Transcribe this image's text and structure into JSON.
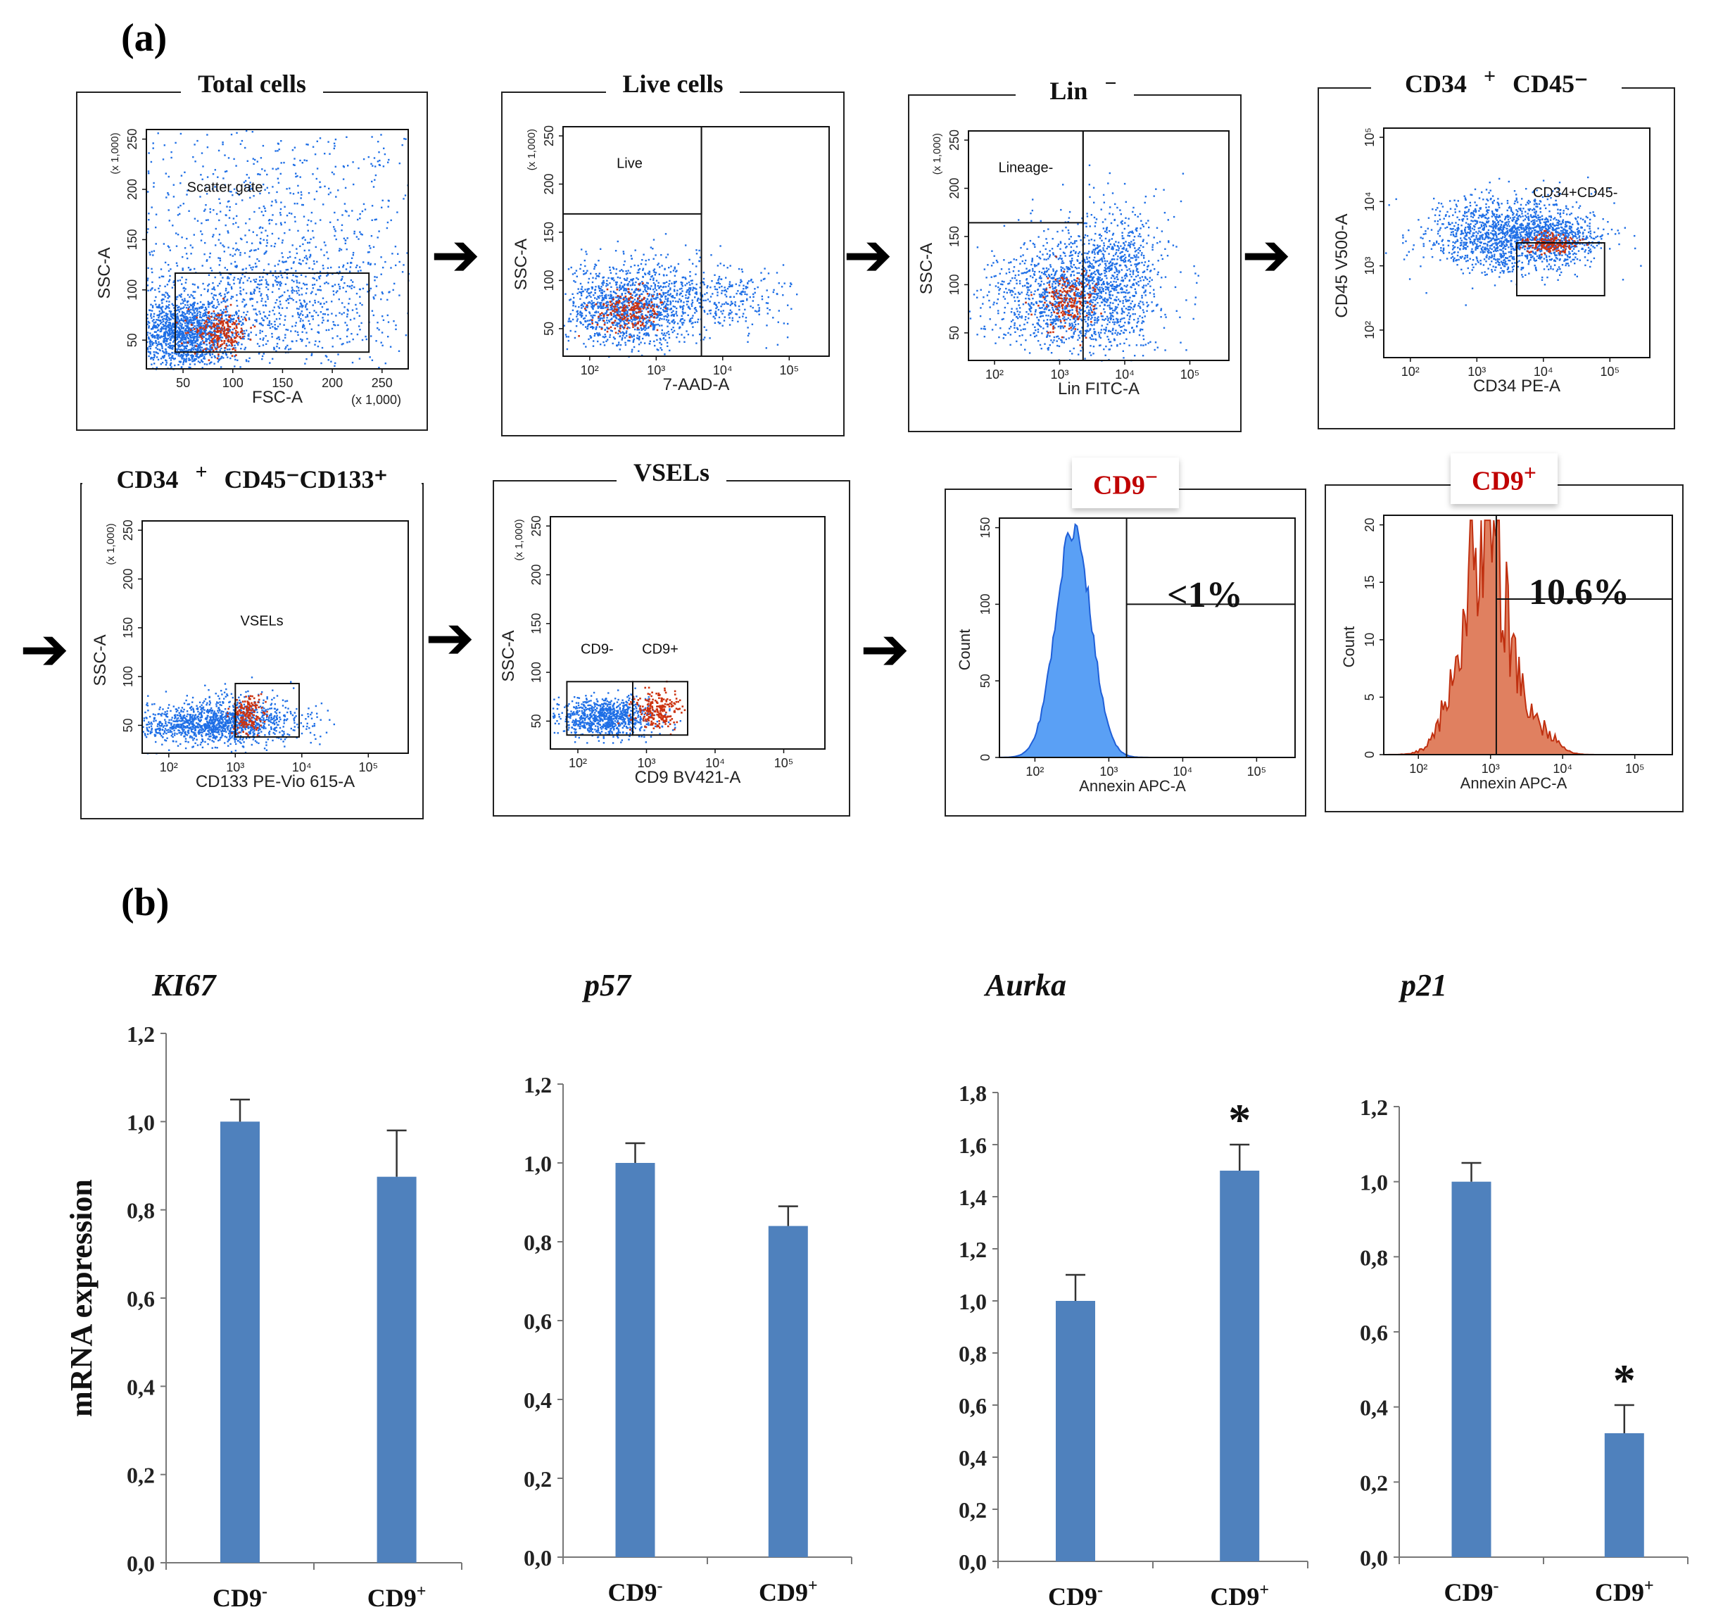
{
  "panels": {
    "a": "(a)",
    "b": "(b)"
  },
  "colors": {
    "blue": "#1f6fe6",
    "red": "#cc3310",
    "bar": "#4f81bd",
    "cd_red": "#c00000",
    "hist_blue": "#5aa0f5",
    "hist_red": "#e08060"
  },
  "flow": [
    {
      "id": "total",
      "title": "Total cells",
      "title_sup": "",
      "title_after": "",
      "xlabel": "FSC-A",
      "ylabel": "SSC-A",
      "ymult": "(x 1,000)",
      "xmult": "(x 1,000)",
      "scale": "linear",
      "xticks": [
        "50",
        "100",
        "150",
        "200",
        "250"
      ],
      "yticks": [
        "50",
        "100",
        "150",
        "200",
        "250"
      ],
      "gates": [
        {
          "label": "Scatter gate"
        }
      ]
    },
    {
      "id": "live",
      "title": "Live cells",
      "title_sup": "",
      "title_after": "",
      "xlabel": "7-AAD-A",
      "ylabel": "SSC-A",
      "ymult": "(x 1,000)",
      "scale": "log",
      "xticks": [
        "10²",
        "10³",
        "10⁴",
        "10⁵"
      ],
      "yticks": [
        "50",
        "100",
        "150",
        "200",
        "250"
      ],
      "gates": [
        {
          "label": "Live"
        }
      ]
    },
    {
      "id": "lin",
      "title": "Lin",
      "title_sup": "−",
      "title_after": "",
      "xlabel": "Lin FITC-A",
      "ylabel": "SSC-A",
      "ymult": "(x 1,000)",
      "scale": "log",
      "xticks": [
        "10²",
        "10³",
        "10⁴",
        "10⁵"
      ],
      "yticks": [
        "50",
        "100",
        "150",
        "200",
        "250"
      ],
      "gates": [
        {
          "label": "Lineage-"
        }
      ]
    },
    {
      "id": "cd34",
      "title": "CD34",
      "title_sup": "+",
      "title_after": "CD45⁻",
      "xlabel": "CD34 PE-A",
      "ylabel": "CD45 V500-A",
      "ymult": "",
      "scale": "log",
      "xticks": [
        "10²",
        "10³",
        "10⁴",
        "10⁵"
      ],
      "yticks": [
        "10²",
        "10³",
        "10⁴",
        "10⁵"
      ],
      "gates": [
        {
          "label": "CD34+CD45-"
        }
      ]
    },
    {
      "id": "cd133",
      "title": "CD34",
      "title_sup": "+",
      "title_after": "CD45⁻CD133⁺",
      "xlabel": "CD133 PE-Vio 615-A",
      "ylabel": "SSC-A",
      "ymult": "(x 1,000)",
      "scale": "log",
      "xticks": [
        "10²",
        "10³",
        "10⁴",
        "10⁵"
      ],
      "yticks": [
        "50",
        "100",
        "150",
        "200",
        "250"
      ],
      "gates": [
        {
          "label": "VSELs"
        }
      ]
    },
    {
      "id": "vsel",
      "title": "VSELs",
      "title_sup": "",
      "title_after": "",
      "xlabel": "CD9 BV421-A",
      "ylabel": "SSC-A",
      "ymult": "(x 1,000)",
      "scale": "log",
      "xticks": [
        "10²",
        "10³",
        "10⁴",
        "10⁵"
      ],
      "yticks": [
        "50",
        "100",
        "150",
        "200",
        "250"
      ],
      "gates": [
        {
          "label": "CD9-"
        },
        {
          "label": "CD9+"
        }
      ]
    }
  ],
  "histograms": [
    {
      "id": "cd9neg",
      "tag": "CD9",
      "tag_sup": "−",
      "xlabel": "Annexin APC-A",
      "ylabel": "Count",
      "yticks": [
        "0",
        "50",
        "100",
        "150"
      ],
      "xticks": [
        "10²",
        "10³",
        "10⁴",
        "10⁵"
      ],
      "percent": "<1%"
    },
    {
      "id": "cd9pos",
      "tag": "CD9",
      "tag_sup": "+",
      "xlabel": "Annexin APC-A",
      "ylabel": "Count",
      "yticks": [
        "0",
        "5",
        "10",
        "15",
        "20"
      ],
      "xticks": [
        "10²",
        "10³",
        "10⁴",
        "10⁵"
      ],
      "percent": "10.6%"
    }
  ],
  "chart_data": [
    {
      "type": "bar",
      "title": "KI67",
      "categories": [
        "CD9-",
        "CD9+"
      ],
      "values": [
        1.0,
        0.875
      ],
      "errors": [
        0.05,
        0.105
      ],
      "significant": [
        false,
        false
      ],
      "ylim": [
        0,
        1.2
      ],
      "yticks": [
        "0,0",
        "0,2",
        "0,4",
        "0,6",
        "0,8",
        "1,0",
        "1,2"
      ],
      "ylabel": "mRNA expression"
    },
    {
      "type": "bar",
      "title": "p57",
      "categories": [
        "CD9-",
        "CD9+"
      ],
      "values": [
        1.0,
        0.84
      ],
      "errors": [
        0.05,
        0.05
      ],
      "significant": [
        false,
        false
      ],
      "ylim": [
        0,
        1.2
      ],
      "yticks": [
        "0,0",
        "0,2",
        "0,4",
        "0,6",
        "0,8",
        "1,0",
        "1,2"
      ],
      "ylabel": ""
    },
    {
      "type": "bar",
      "title": "Aurka",
      "categories": [
        "CD9-",
        "CD9+"
      ],
      "values": [
        1.0,
        1.5
      ],
      "errors": [
        0.1,
        0.1
      ],
      "significant": [
        false,
        true
      ],
      "ylim": [
        0,
        1.8
      ],
      "yticks": [
        "0,0",
        "0,2",
        "0,4",
        "0,6",
        "0,8",
        "1,0",
        "1,2",
        "1,4",
        "1,6",
        "1,8"
      ],
      "ylabel": ""
    },
    {
      "type": "bar",
      "title": "p21",
      "categories": [
        "CD9-",
        "CD9+"
      ],
      "values": [
        1.0,
        0.33
      ],
      "errors": [
        0.05,
        0.075
      ],
      "significant": [
        false,
        true
      ],
      "ylim": [
        0,
        1.2
      ],
      "yticks": [
        "0,0",
        "0,2",
        "0,4",
        "0,6",
        "0,8",
        "1,0",
        "1,2"
      ],
      "ylabel": ""
    }
  ],
  "cat_labels": [
    {
      "base": "CD9",
      "sup": "-"
    },
    {
      "base": "CD9",
      "sup": "+"
    }
  ],
  "significance_marker": "*"
}
